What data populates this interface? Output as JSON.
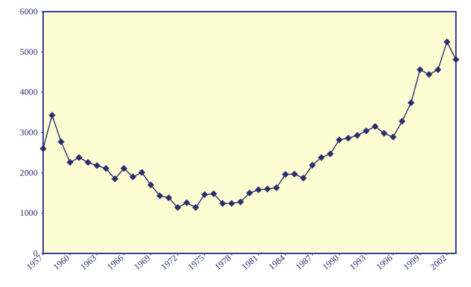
{
  "chart_data": {
    "type": "line",
    "x": [
      1957,
      1958,
      1959,
      1960,
      1961,
      1962,
      1963,
      1964,
      1965,
      1966,
      1967,
      1968,
      1969,
      1970,
      1971,
      1972,
      1973,
      1974,
      1975,
      1976,
      1977,
      1978,
      1979,
      1980,
      1981,
      1982,
      1983,
      1984,
      1985,
      1986,
      1987,
      1988,
      1989,
      1990,
      1991,
      1992,
      1993,
      1994,
      1995,
      1996,
      1997,
      1998,
      1999,
      2000,
      2001,
      2002,
      2003
    ],
    "values": [
      2600,
      3430,
      2770,
      2260,
      2380,
      2260,
      2180,
      2110,
      1850,
      2110,
      1900,
      2010,
      1700,
      1430,
      1380,
      1140,
      1260,
      1140,
      1460,
      1480,
      1240,
      1240,
      1280,
      1500,
      1580,
      1600,
      1630,
      1960,
      1970,
      1870,
      2190,
      2380,
      2470,
      2820,
      2860,
      2930,
      3040,
      3150,
      2980,
      2890,
      3280,
      3740,
      4560,
      4440,
      4560,
      5250,
      4810
    ],
    "color": "#2a2f6e",
    "xlim": [
      1957,
      2003
    ],
    "xticks": [
      1957,
      1960,
      1963,
      1966,
      1969,
      1972,
      1975,
      1978,
      1981,
      1984,
      1987,
      1990,
      1993,
      1996,
      1999,
      2002
    ],
    "ylim": [
      0,
      6000
    ],
    "yticks": [
      0,
      1000,
      2000,
      3000,
      4000,
      5000,
      6000
    ],
    "grid": false
  }
}
